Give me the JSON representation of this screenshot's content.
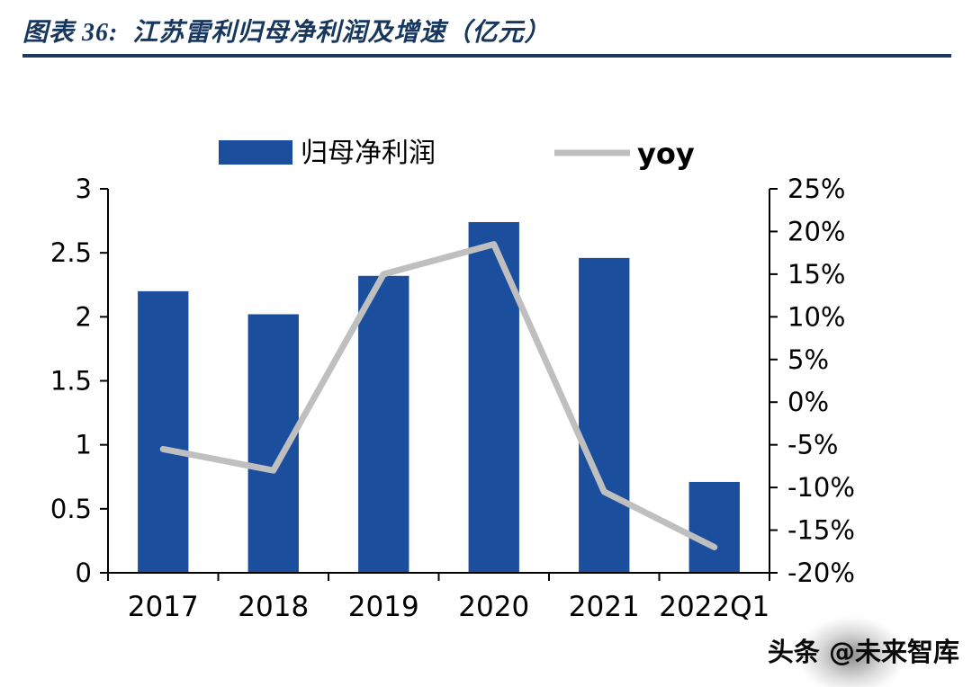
{
  "header": {
    "title": "图表 36:  江苏雷利归母净利润及增速（亿元）",
    "rule_color": "#1F3864"
  },
  "watermark": {
    "text": "头条 @未来智库"
  },
  "chart_data": {
    "type": "bar",
    "title": "江苏雷利归母净利润及增速（亿元）",
    "categories": [
      "2017",
      "2018",
      "2019",
      "2020",
      "2021",
      "2022Q1"
    ],
    "series": [
      {
        "name": "归母净利润",
        "type": "bar",
        "axis": "left",
        "color": "#1C4E9E",
        "values": [
          2.2,
          2.02,
          2.32,
          2.74,
          2.46,
          0.71
        ]
      },
      {
        "name": "yoy",
        "type": "line",
        "axis": "right",
        "color": "#BFBFBF",
        "values": [
          -5.5,
          -8,
          15,
          18.5,
          -10.5,
          -17
        ]
      }
    ],
    "left_axis": {
      "min": 0,
      "max": 3,
      "step": 0.5,
      "tick_labels": [
        "0",
        "0.5",
        "1",
        "1.5",
        "2",
        "2.5",
        "3"
      ]
    },
    "right_axis": {
      "min": -20,
      "max": 25,
      "step": 5,
      "tick_labels": [
        "-20%",
        "-15%",
        "-10%",
        "-5%",
        "0%",
        "5%",
        "10%",
        "15%",
        "20%",
        "25%"
      ]
    },
    "legend": [
      {
        "label": "归母净利润",
        "color": "#1C4E9E",
        "type": "bar"
      },
      {
        "label": "yoy",
        "color": "#BFBFBF",
        "type": "line"
      }
    ],
    "grid": false,
    "legend_position": "top"
  }
}
